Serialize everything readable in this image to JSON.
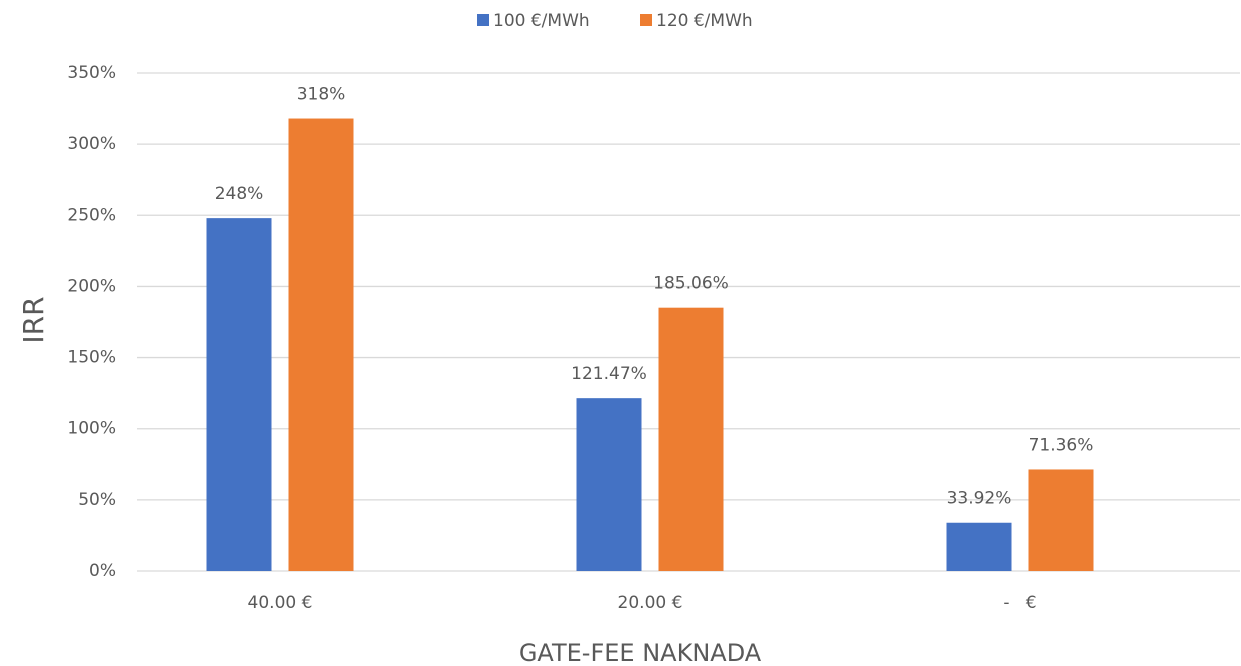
{
  "chart_data": {
    "type": "bar",
    "categories": [
      "40.00 €",
      "20.00 €",
      "-   €"
    ],
    "series": [
      {
        "name": "100 €/MWh",
        "color": "#4472c4",
        "values": [
          248,
          121.47,
          33.92
        ],
        "value_labels": [
          "248%",
          "121.47%",
          "33.92%"
        ]
      },
      {
        "name": "120 €/MWh",
        "color": "#ed7d31",
        "values": [
          318,
          185.06,
          71.36
        ],
        "value_labels": [
          "318%",
          "185.06%",
          "71.36%"
        ]
      }
    ],
    "y_label": "IRR",
    "x_label": "GATE-FEE NAKNADA",
    "ylim": [
      0,
      350
    ],
    "yticks": [
      {
        "value": 0,
        "label": "0%"
      },
      {
        "value": 50,
        "label": "50%"
      },
      {
        "value": 100,
        "label": "100%"
      },
      {
        "value": 150,
        "label": "150%"
      },
      {
        "value": 200,
        "label": "200%"
      },
      {
        "value": 250,
        "label": "250%"
      },
      {
        "value": 300,
        "label": "300%"
      },
      {
        "value": 350,
        "label": "350%"
      }
    ],
    "grid": true,
    "legend": "top"
  }
}
